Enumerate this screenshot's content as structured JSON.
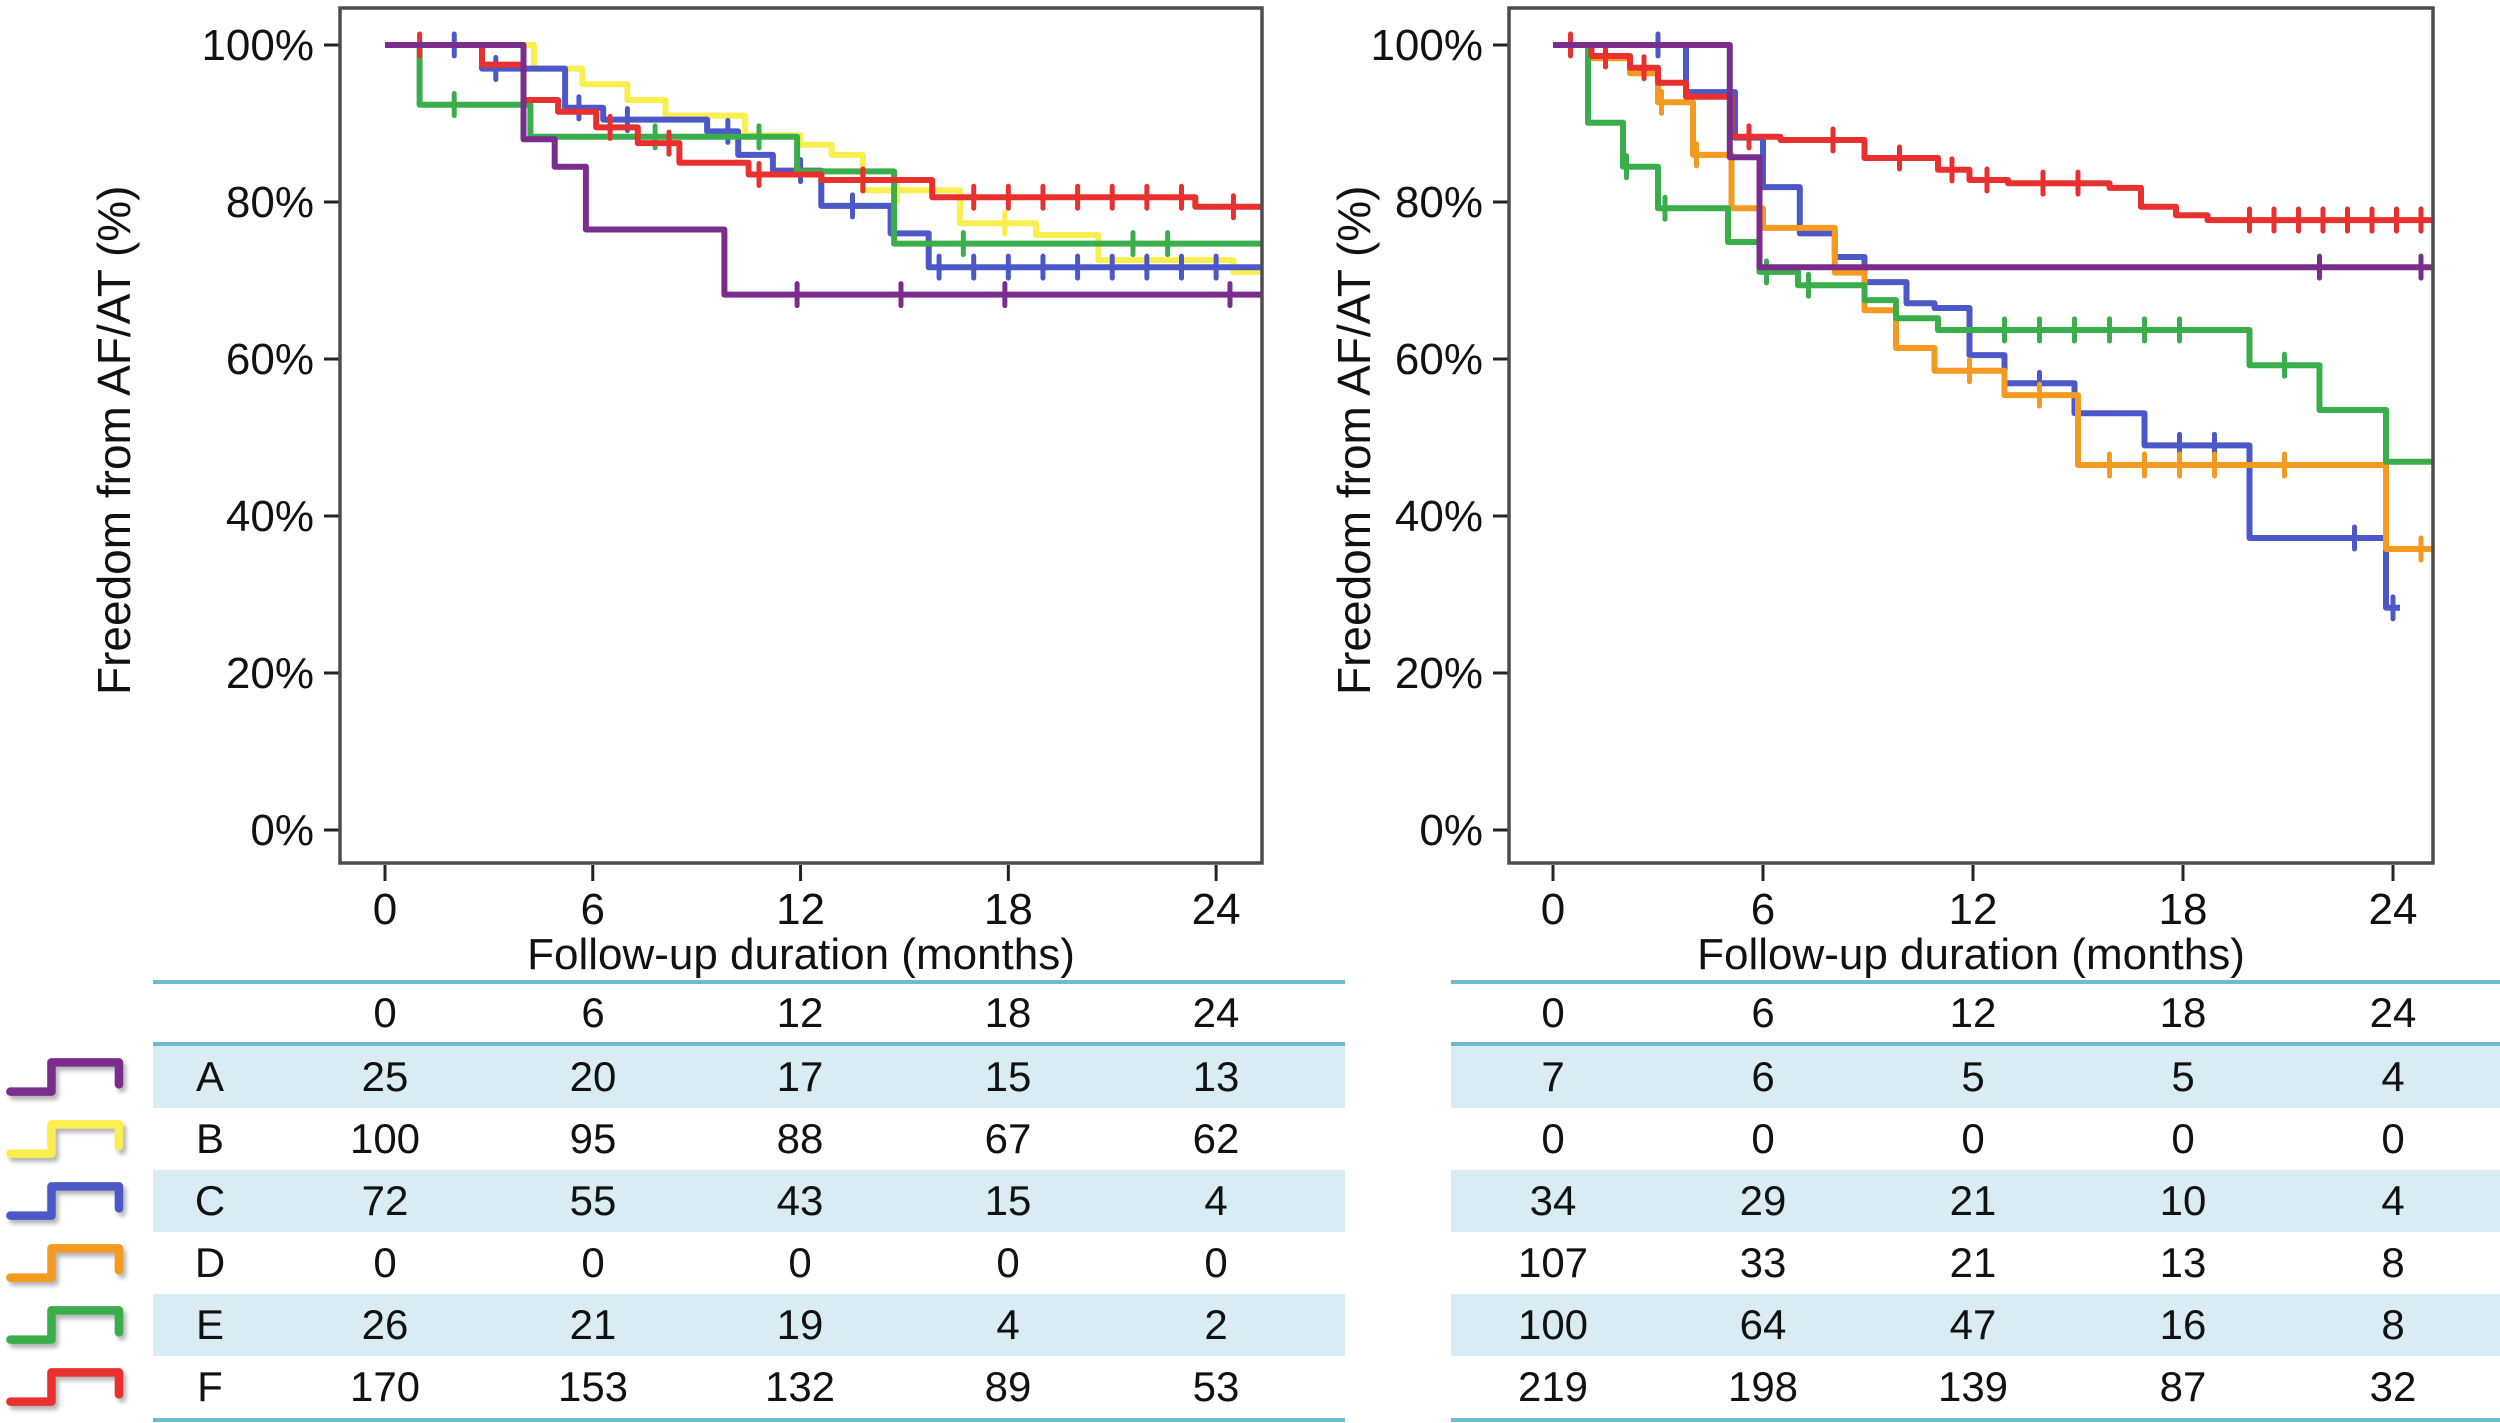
{
  "figure": {
    "background": "#ffffff",
    "axis_color": "#4D4D4D",
    "table_rule_color": "#6FBAD3",
    "table_band_color": "#D9ECF3"
  },
  "groups": [
    {
      "id": "A",
      "color": "#7B2D8E"
    },
    {
      "id": "B",
      "color": "#FBEE4F"
    },
    {
      "id": "C",
      "color": "#4C58C8"
    },
    {
      "id": "D",
      "color": "#F49A21"
    },
    {
      "id": "E",
      "color": "#3BAE4C"
    },
    {
      "id": "F",
      "color": "#E8312F"
    }
  ],
  "chart_data": [
    {
      "type": "line",
      "subtype": "kaplan-meier-step",
      "panel": "left",
      "title": "",
      "xlabel": "Follow-up duration (months)",
      "ylabel": "Freedom from AF/AT (%)",
      "xlim": [
        -1.3,
        25.3
      ],
      "ylim": [
        -4.2,
        104.8
      ],
      "grid": false,
      "legend_position": "left-of-risk-table",
      "xticks": [
        {
          "v": 0,
          "label": "0"
        },
        {
          "v": 6,
          "label": "6"
        },
        {
          "v": 12,
          "label": "12"
        },
        {
          "v": 18,
          "label": "18"
        },
        {
          "v": 24,
          "label": "24"
        }
      ],
      "yticks": [
        {
          "v": 100,
          "label": "100%"
        },
        {
          "v": 80,
          "label": "80%"
        },
        {
          "v": 60,
          "label": "60%"
        },
        {
          "v": 40,
          "label": "40%"
        },
        {
          "v": 20,
          "label": "20%"
        },
        {
          "v": 0,
          "label": "0%"
        }
      ],
      "series": [
        {
          "group": "A",
          "points": [
            [
              0,
              100
            ],
            [
              4.0,
              88
            ],
            [
              4.9,
              84.5
            ],
            [
              5.8,
              76.5
            ],
            [
              9.8,
              68.2
            ]
          ],
          "end": 25.3,
          "censor_times": [
            11.9,
            14.9,
            17.9,
            24.4
          ]
        },
        {
          "group": "B",
          "points": [
            [
              0,
              100
            ],
            [
              4.3,
              97
            ],
            [
              5.7,
              95
            ],
            [
              7.0,
              93
            ],
            [
              8.1,
              91
            ],
            [
              10.4,
              88.5
            ],
            [
              12.0,
              87.3
            ],
            [
              12.9,
              86
            ],
            [
              13.8,
              81.5
            ],
            [
              16.6,
              77.3
            ],
            [
              18.8,
              75.8
            ],
            [
              20.6,
              72.6
            ],
            [
              24.5,
              71.1
            ]
          ],
          "end": 25.3,
          "censor_times": [
            14.8,
            17.9
          ]
        },
        {
          "group": "C",
          "points": [
            [
              0,
              100
            ],
            [
              2.8,
              97
            ],
            [
              5.2,
              92
            ],
            [
              6.3,
              90.5
            ],
            [
              9.3,
              89
            ],
            [
              10.2,
              86
            ],
            [
              11.2,
              84
            ],
            [
              12.6,
              79.5
            ],
            [
              14.6,
              76
            ],
            [
              15.7,
              71.7
            ]
          ],
          "end": 25.3,
          "censor_times": [
            2.0,
            3.2,
            5.6,
            7.0,
            9.9,
            12.0,
            13.5,
            16,
            17,
            18,
            19,
            20,
            21,
            22,
            23,
            24
          ]
        },
        {
          "group": "D",
          "points": [],
          "end": null,
          "censor_times": []
        },
        {
          "group": "E",
          "points": [
            [
              0,
              100
            ],
            [
              1.0,
              92.4
            ],
            [
              4.2,
              88.3
            ],
            [
              11.9,
              83.9
            ],
            [
              14.7,
              74.7
            ]
          ],
          "end": 25.3,
          "censor_times": [
            2.0,
            7.8,
            10.8,
            16.7,
            21.6,
            22.6
          ]
        },
        {
          "group": "F",
          "points": [
            [
              0,
              100
            ],
            [
              2.8,
              97.5
            ],
            [
              4.0,
              93
            ],
            [
              5.0,
              91.5
            ],
            [
              6.1,
              89.5
            ],
            [
              7.3,
              87.5
            ],
            [
              8.5,
              85
            ],
            [
              10.5,
              83.5
            ],
            [
              12.6,
              82.8
            ],
            [
              15.8,
              80.6
            ],
            [
              23.4,
              79.4
            ]
          ],
          "end": 25.3,
          "censor_times": [
            1.0,
            6.5,
            8.2,
            10.8,
            13.8,
            17,
            18,
            19,
            20,
            21,
            22,
            23,
            24.5
          ]
        }
      ],
      "risk_table": {
        "time_header": [
          "0",
          "6",
          "12",
          "18",
          "24"
        ],
        "rows": [
          {
            "label": "A",
            "values": [
              "25",
              "20",
              "17",
              "15",
              "13"
            ]
          },
          {
            "label": "B",
            "values": [
              "100",
              "95",
              "88",
              "67",
              "62"
            ]
          },
          {
            "label": "C",
            "values": [
              "72",
              "55",
              "43",
              "15",
              "4"
            ]
          },
          {
            "label": "D",
            "values": [
              "0",
              "0",
              "0",
              "0",
              "0"
            ]
          },
          {
            "label": "E",
            "values": [
              "26",
              "21",
              "19",
              "4",
              "2"
            ]
          },
          {
            "label": "F",
            "values": [
              "170",
              "153",
              "132",
              "89",
              "53"
            ]
          }
        ]
      }
    },
    {
      "type": "line",
      "subtype": "kaplan-meier-step",
      "panel": "right",
      "title": "",
      "xlabel": "Follow-up duration (months)",
      "ylabel": "Freedom from AF/AT (%)",
      "xlim": [
        -1.3,
        25.1
      ],
      "ylim": [
        -4.2,
        104.8
      ],
      "grid": false,
      "xticks": [
        {
          "v": 0,
          "label": "0"
        },
        {
          "v": 6,
          "label": "6"
        },
        {
          "v": 12,
          "label": "12"
        },
        {
          "v": 18,
          "label": "18"
        },
        {
          "v": 24,
          "label": "24"
        }
      ],
      "yticks": [
        {
          "v": 100,
          "label": "100%"
        },
        {
          "v": 80,
          "label": "80%"
        },
        {
          "v": 60,
          "label": "60%"
        },
        {
          "v": 40,
          "label": "40%"
        },
        {
          "v": 20,
          "label": "20%"
        },
        {
          "v": 0,
          "label": "0%"
        }
      ],
      "series": [
        {
          "group": "A",
          "points": [
            [
              0,
              100
            ],
            [
              5.05,
              85.7
            ],
            [
              5.9,
              71.7
            ]
          ],
          "end": 25.1,
          "censor_times": [
            21.9,
            24.8
          ]
        },
        {
          "group": "B",
          "points": [],
          "end": null,
          "censor_times": []
        },
        {
          "group": "C",
          "points": [
            [
              0,
              100
            ],
            [
              3.8,
              94
            ],
            [
              5.2,
              88.2
            ],
            [
              6.0,
              81.9
            ],
            [
              7.05,
              76
            ],
            [
              8.05,
              73
            ],
            [
              8.9,
              69.8
            ],
            [
              10.1,
              67.1
            ],
            [
              10.9,
              66.5
            ],
            [
              11.9,
              60.5
            ],
            [
              12.9,
              56.9
            ],
            [
              14.9,
              53.1
            ],
            [
              16.9,
              49
            ],
            [
              19.9,
              37.2
            ],
            [
              23.8,
              28.3
            ]
          ],
          "end": 24.2,
          "censor_times": [
            3.0,
            13.9,
            17.9,
            18.9,
            22.9,
            24.0
          ]
        },
        {
          "group": "D",
          "points": [
            [
              0,
              100
            ],
            [
              1.0,
              98.3
            ],
            [
              2.2,
              96.4
            ],
            [
              3.0,
              92.7
            ],
            [
              4.0,
              86
            ],
            [
              5.1,
              79.2
            ],
            [
              6.0,
              76.7
            ],
            [
              8.05,
              71
            ],
            [
              8.9,
              66.2
            ],
            [
              9.8,
              61.4
            ],
            [
              10.9,
              58.5
            ],
            [
              12.9,
              55.4
            ],
            [
              15.0,
              46.5
            ],
            [
              23.8,
              35.8
            ]
          ],
          "end": 25.1,
          "censor_times": [
            3.1,
            4.1,
            11.9,
            13.9,
            15.9,
            16.9,
            17.9,
            18.9,
            20.9,
            24.8
          ]
        },
        {
          "group": "E",
          "points": [
            [
              0,
              100
            ],
            [
              1.0,
              90.1
            ],
            [
              2.0,
              84.5
            ],
            [
              3.0,
              79.2
            ],
            [
              5.0,
              74.9
            ],
            [
              5.9,
              71.1
            ],
            [
              7.0,
              69.4
            ],
            [
              8.9,
              67.5
            ],
            [
              9.8,
              65.2
            ],
            [
              11.0,
              63.7
            ],
            [
              19.9,
              59.2
            ],
            [
              21.9,
              53.5
            ],
            [
              23.8,
              46.9
            ]
          ],
          "end": 25.1,
          "censor_times": [
            2.1,
            3.2,
            6.1,
            7.3,
            12.9,
            13.9,
            14.9,
            15.9,
            16.9,
            17.9,
            20.9
          ]
        },
        {
          "group": "F",
          "points": [
            [
              0,
              100
            ],
            [
              1.1,
              98.6
            ],
            [
              2.2,
              97.1
            ],
            [
              3.0,
              95.2
            ],
            [
              3.8,
              93.4
            ],
            [
              5.1,
              88.3
            ],
            [
              6.5,
              87.9
            ],
            [
              8.9,
              85.6
            ],
            [
              11.0,
              84.1
            ],
            [
              11.9,
              82.8
            ],
            [
              13.0,
              82.4
            ],
            [
              15.9,
              81.8
            ],
            [
              16.8,
              79.4
            ],
            [
              17.8,
              78.3
            ],
            [
              18.7,
              77.7
            ]
          ],
          "end": 25.1,
          "censor_times": [
            0.5,
            1.5,
            2.6,
            5.6,
            8.0,
            9.9,
            11.4,
            12.4,
            14.0,
            15.0,
            19.9,
            20.6,
            21.3,
            22.0,
            22.7,
            23.4,
            24.1,
            24.8
          ]
        }
      ],
      "risk_table": {
        "time_header": [
          "0",
          "6",
          "12",
          "18",
          "24"
        ],
        "rows": [
          {
            "label": "A",
            "values": [
              "7",
              "6",
              "5",
              "5",
              "4"
            ]
          },
          {
            "label": "B",
            "values": [
              "0",
              "0",
              "0",
              "0",
              "0"
            ]
          },
          {
            "label": "C",
            "values": [
              "34",
              "29",
              "21",
              "10",
              "4"
            ]
          },
          {
            "label": "D",
            "values": [
              "107",
              "33",
              "21",
              "13",
              "8"
            ]
          },
          {
            "label": "E",
            "values": [
              "100",
              "64",
              "47",
              "16",
              "8"
            ]
          },
          {
            "label": "F",
            "values": [
              "219",
              "198",
              "139",
              "87",
              "32"
            ]
          }
        ]
      }
    }
  ]
}
